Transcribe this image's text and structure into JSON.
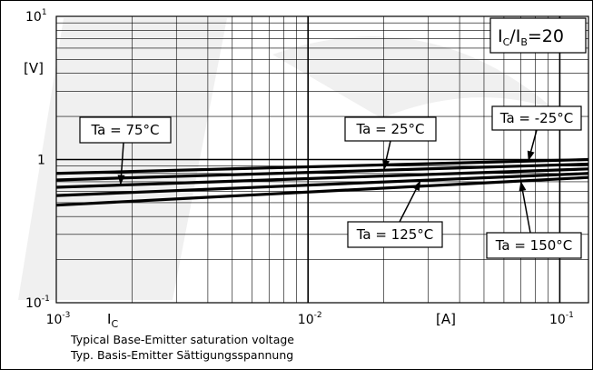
{
  "chart_data": {
    "type": "line",
    "x_scale": "log",
    "y_scale": "log",
    "xlim": [
      0.001,
      0.13
    ],
    "ylim": [
      0.1,
      10
    ],
    "grid": true,
    "parameter": {
      "main": "I",
      "sub1": "C",
      "slash": "/I",
      "sub2": "B",
      "eq": "=20"
    },
    "y_ticks": [
      {
        "mant": "10",
        "exp": "1",
        "value": 10
      },
      {
        "mant": "1",
        "exp": "",
        "value": 1
      },
      {
        "mant": "10",
        "exp": "-1",
        "value": 0.1
      }
    ],
    "y_unit": "[V]",
    "x_ticks": [
      {
        "mant": "10",
        "exp": "-3",
        "value": 0.001
      },
      {
        "mant": "10",
        "exp": "-2",
        "value": 0.01
      },
      {
        "mant": "10",
        "exp": "-1",
        "value": 0.1
      }
    ],
    "xlabel": {
      "main": "I",
      "sub": "C"
    },
    "x_unit": "[A]",
    "caption": [
      "Typical Base-Emitter saturation voltage",
      "Typ. Basis-Emitter Sättigungsspannung"
    ],
    "series": [
      {
        "name": "Ta = -25°C",
        "x": [
          0.001,
          0.13
        ],
        "y": [
          0.8,
          1.0
        ]
      },
      {
        "name": "Ta = 25°C",
        "x": [
          0.001,
          0.13
        ],
        "y": [
          0.72,
          0.93
        ]
      },
      {
        "name": "Ta = 75°C",
        "x": [
          0.001,
          0.13
        ],
        "y": [
          0.64,
          0.86
        ]
      },
      {
        "name": "Ta = 125°C",
        "x": [
          0.001,
          0.13
        ],
        "y": [
          0.56,
          0.8
        ]
      },
      {
        "name": "Ta = 150°C",
        "x": [
          0.001,
          0.13
        ],
        "y": [
          0.48,
          0.75
        ]
      }
    ],
    "annotations": [
      {
        "text": "Ta = 75°C",
        "series": 2,
        "at_x": 0.0018
      },
      {
        "text": "Ta = 25°C",
        "series": 1,
        "at_x": 0.02
      },
      {
        "text": "Ta = -25°C",
        "series": 0,
        "at_x": 0.075
      },
      {
        "text": "Ta = 125°C",
        "series": 3,
        "at_x": 0.028
      },
      {
        "text": "Ta = 150°C",
        "series": 4,
        "at_x": 0.07
      }
    ]
  }
}
